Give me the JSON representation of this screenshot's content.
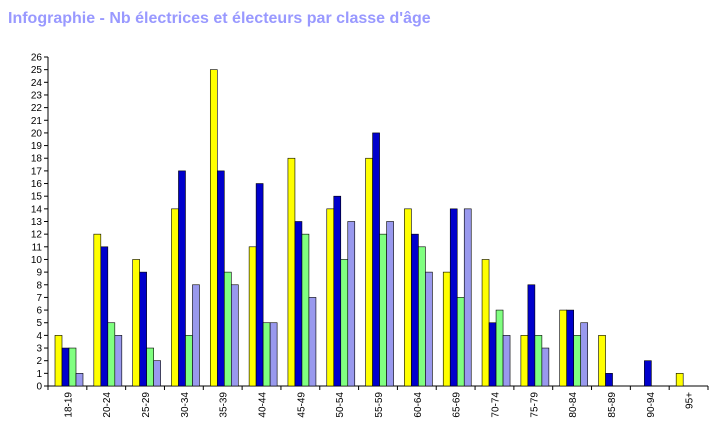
{
  "title": "Infographie - Nb électrices et électeurs par classe d'âge",
  "chart_data": {
    "type": "bar",
    "title": "Infographie - Nb électrices et électeurs par classe d'âge",
    "xlabel": "",
    "ylabel": "",
    "ylim": [
      0,
      26
    ],
    "grid": false,
    "legend": "none",
    "categories": [
      "18-19",
      "20-24",
      "25-29",
      "30-34",
      "35-39",
      "40-44",
      "45-49",
      "50-54",
      "55-59",
      "60-64",
      "65-69",
      "70-74",
      "75-79",
      "80-84",
      "85-89",
      "90-94",
      "95+"
    ],
    "yticks": [
      0,
      1,
      2,
      3,
      4,
      5,
      6,
      7,
      8,
      9,
      10,
      11,
      12,
      13,
      14,
      15,
      16,
      17,
      18,
      19,
      20,
      21,
      22,
      23,
      24,
      25,
      26
    ],
    "series": [
      {
        "color": "#ffff00",
        "values": [
          4,
          12,
          10,
          14,
          25,
          11,
          18,
          14,
          18,
          14,
          9,
          10,
          4,
          6,
          4,
          0,
          1
        ]
      },
      {
        "color": "#0000cc",
        "values": [
          3,
          11,
          9,
          17,
          17,
          16,
          13,
          15,
          20,
          12,
          14,
          5,
          8,
          6,
          1,
          2,
          0
        ]
      },
      {
        "color": "#80ff80",
        "values": [
          3,
          5,
          3,
          4,
          9,
          5,
          12,
          10,
          12,
          11,
          7,
          6,
          4,
          4,
          0,
          0,
          0
        ]
      },
      {
        "color": "#9999ee",
        "values": [
          1,
          4,
          2,
          8,
          8,
          5,
          7,
          13,
          13,
          9,
          14,
          4,
          3,
          5,
          0,
          0,
          0
        ]
      }
    ]
  }
}
